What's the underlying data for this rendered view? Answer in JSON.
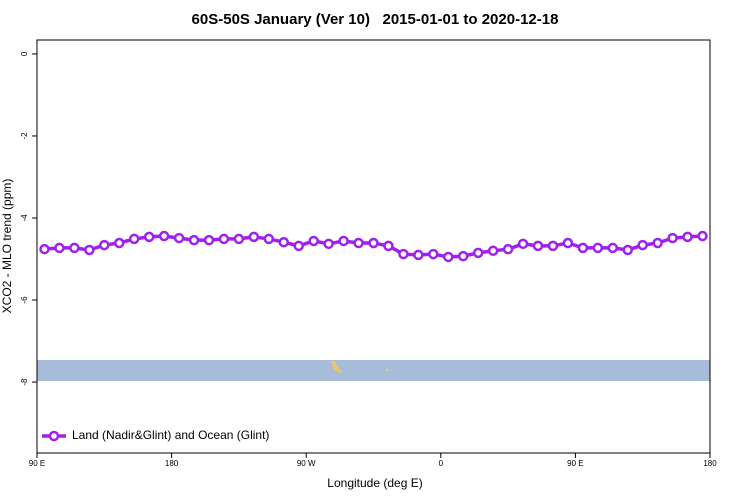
{
  "chart_data": {
    "type": "line",
    "title": "60S-50S January (Ver 10)   2015-01-01 to 2020-12-18",
    "xlabel": "Longitude (deg E)",
    "ylabel": "XCO2 - MLO trend (ppm)",
    "x": [
      95,
      105,
      115,
      125,
      135,
      145,
      155,
      165,
      175,
      185,
      195,
      205,
      215,
      225,
      235,
      245,
      255,
      265,
      275,
      285,
      295,
      305,
      315,
      325,
      335,
      345,
      355,
      365,
      375,
      385,
      395,
      405,
      415,
      425,
      435,
      445,
      455,
      465,
      475,
      485,
      495,
      505,
      515,
      525,
      535
    ],
    "series": [
      {
        "name": "Land (Nadir&Glint) and Ocean (Glint)",
        "color": "#a020f0",
        "values": [
          -4.76,
          -4.73,
          -4.73,
          -4.78,
          -4.66,
          -4.61,
          -4.51,
          -4.46,
          -4.44,
          -4.49,
          -4.54,
          -4.54,
          -4.51,
          -4.51,
          -4.46,
          -4.51,
          -4.59,
          -4.68,
          -4.56,
          -4.63,
          -4.56,
          -4.61,
          -4.61,
          -4.68,
          -4.88,
          -4.9,
          -4.88,
          -4.95,
          -4.93,
          -4.85,
          -4.8,
          -4.76,
          -4.63,
          -4.68,
          -4.68,
          -4.61,
          -4.73,
          -4.73,
          -4.73,
          -4.78,
          -4.66,
          -4.61,
          -4.49,
          -4.46,
          -4.44
        ]
      }
    ],
    "xlim": [
      90,
      540
    ],
    "xticks": [
      {
        "value": 90,
        "label": "90 E"
      },
      180,
      {
        "value": 270,
        "label": "90 W"
      },
      {
        "value": 360,
        "label": "0"
      },
      {
        "value": 450,
        "label": "90 E"
      },
      {
        "value": 540,
        "label": "180"
      }
    ],
    "ylim": [
      -9.73,
      0.34
    ],
    "yticks": [
      0,
      -2,
      -4,
      -6,
      -8
    ],
    "legend": "bottom-left"
  }
}
